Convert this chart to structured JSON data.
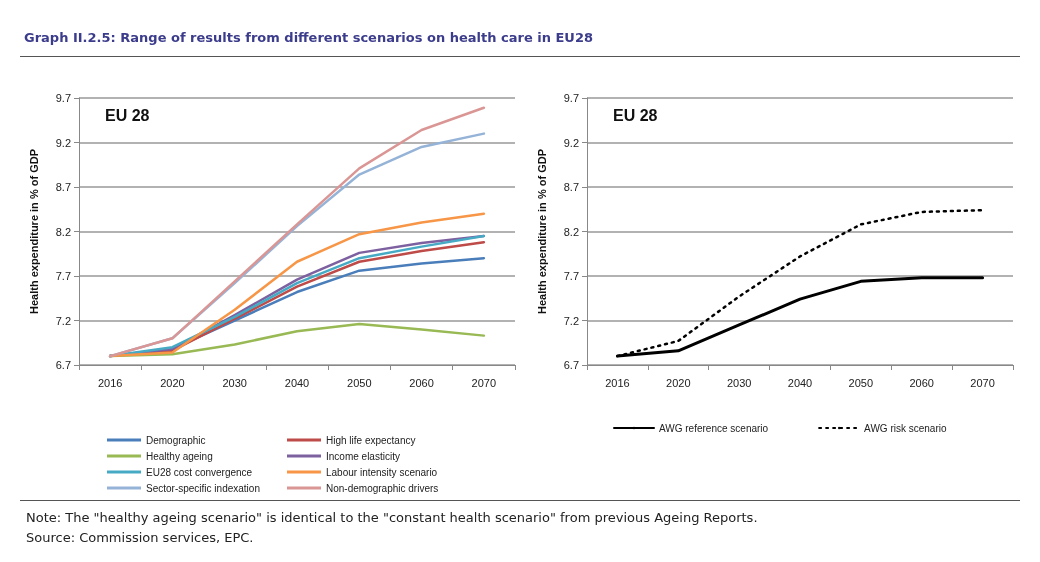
{
  "chart_data": [
    {
      "type": "line",
      "title": "Graph II.2.5: Range of results from different scenarios on health care in EU28",
      "subtitle": "EU 28",
      "ylabel": "Health expenditure in % of GDP",
      "categories": [
        "2016",
        "2020",
        "2030",
        "2040",
        "2050",
        "2060",
        "2070"
      ],
      "series": [
        {
          "name": "Demographic",
          "color": "#4a7ebb",
          "values": [
            6.8,
            6.88,
            7.2,
            7.52,
            7.76,
            7.84,
            7.9
          ]
        },
        {
          "name": "High life expectancy",
          "color": "#be4b48",
          "values": [
            6.8,
            6.86,
            7.22,
            7.58,
            7.86,
            7.98,
            8.08
          ]
        },
        {
          "name": "Healthy ageing",
          "color": "#98b954",
          "values": [
            6.8,
            6.82,
            6.93,
            7.08,
            7.16,
            7.1,
            7.03
          ]
        },
        {
          "name": "Income elasticity",
          "color": "#7d60a0",
          "values": [
            6.8,
            6.88,
            7.26,
            7.66,
            7.96,
            8.07,
            8.15
          ]
        },
        {
          "name": "EU28 cost convergence",
          "color": "#46aac5",
          "values": [
            6.8,
            6.9,
            7.24,
            7.62,
            7.9,
            8.03,
            8.15
          ]
        },
        {
          "name": "Labour intensity scenario",
          "color": "#f79646",
          "values": [
            6.8,
            6.84,
            7.32,
            7.86,
            8.17,
            8.3,
            8.4
          ]
        },
        {
          "name": "Sector-specific indexation",
          "color": "#95b3d7",
          "values": [
            6.8,
            7.0,
            7.62,
            8.26,
            8.84,
            9.15,
            9.3
          ]
        },
        {
          "name": "Non-demographic drivers",
          "color": "#da9694",
          "values": [
            6.8,
            7.0,
            7.64,
            8.28,
            8.91,
            9.34,
            9.59
          ]
        }
      ],
      "ylim": [
        6.7,
        9.7
      ],
      "yticks": [
        6.7,
        7.2,
        7.7,
        8.2,
        8.7,
        9.2,
        9.7
      ],
      "grid": "y",
      "legend": "bottom",
      "marker": "none",
      "annotations": [
        "Note: The \"healthy ageing scenario\" is identical to the \"constant health scenario\" from previous Ageing Reports.",
        "Source: Commission services, EPC."
      ]
    },
    {
      "type": "line",
      "subtitle": "EU 28",
      "ylabel": "Health expenditure in % of GDP",
      "categories": [
        "2016",
        "2020",
        "2030",
        "2040",
        "2050",
        "2060",
        "2070"
      ],
      "series": [
        {
          "name": "AWG reference scenario",
          "color": "#000000",
          "line_style": "solid",
          "values": [
            6.8,
            6.86,
            7.15,
            7.44,
            7.64,
            7.68,
            7.68
          ]
        },
        {
          "name": "AWG risk scenario",
          "color": "#000000",
          "line_style": "dotted",
          "values": [
            6.8,
            6.97,
            7.47,
            7.92,
            8.28,
            8.42,
            8.44
          ]
        }
      ],
      "ylim": [
        6.7,
        9.7
      ],
      "yticks": [
        6.7,
        7.2,
        7.7,
        8.2,
        8.7,
        9.2,
        9.7
      ],
      "grid": "y",
      "legend": "bottom",
      "marker": "none"
    }
  ]
}
